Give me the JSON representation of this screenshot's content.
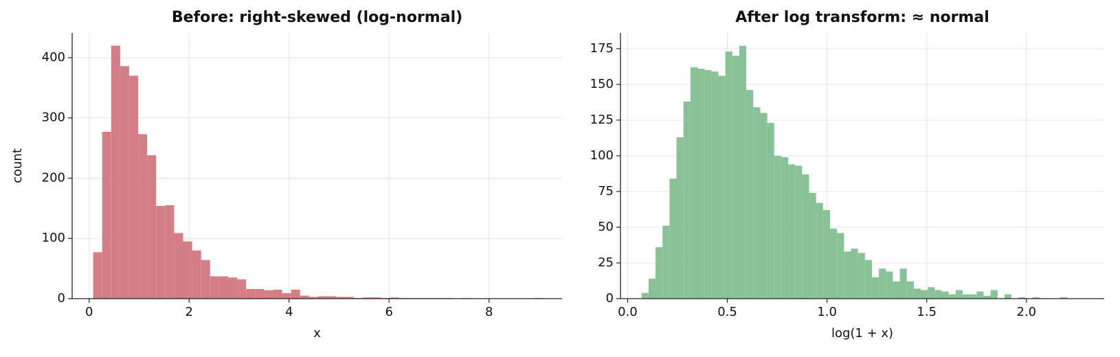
{
  "chart_data": [
    {
      "type": "histogram",
      "title": "Before: right-skewed (log-normal)",
      "xlabel": "x",
      "ylabel": "count",
      "color": "#d47f86",
      "grid": true,
      "bins": [
        0.08,
        0.26,
        0.44,
        0.62,
        0.8,
        0.98,
        1.16,
        1.34,
        1.52,
        1.7,
        1.88,
        2.06,
        2.24,
        2.42,
        2.6,
        2.78,
        2.96,
        3.14,
        3.32,
        3.5,
        3.68,
        3.86,
        4.04,
        4.22,
        4.4,
        4.58,
        4.76,
        4.94,
        5.12,
        5.3,
        5.48,
        5.66,
        5.84,
        6.02,
        6.2,
        6.38,
        6.56,
        6.74,
        6.92,
        7.1,
        7.28,
        7.46,
        7.64,
        7.82,
        8,
        8.18,
        8.36,
        8.54,
        8.72,
        8.9,
        9.08
      ],
      "counts": [
        77,
        277,
        420,
        386,
        370,
        273,
        238,
        154,
        155,
        109,
        95,
        80,
        64,
        37,
        37,
        35,
        32,
        16,
        16,
        14,
        15,
        9,
        15,
        5,
        3,
        4,
        4,
        3,
        3,
        1,
        2,
        2,
        1,
        2,
        1,
        1,
        1,
        1,
        1,
        1,
        0,
        1,
        0,
        0,
        0,
        0,
        0,
        0,
        0,
        1
      ],
      "xlim": [
        -0.34,
        9.46
      ],
      "xticks": [
        0,
        2,
        4,
        6,
        8
      ],
      "ylim": [
        0,
        441
      ],
      "yticks": [
        0,
        100,
        200,
        300,
        400
      ]
    },
    {
      "type": "histogram",
      "title": "After log transform: ≈ normal",
      "xlabel": "log(1 + x)",
      "color": "#88c296",
      "grid": true,
      "bins": [
        0.07,
        0.105,
        0.14,
        0.175,
        0.21,
        0.245,
        0.28,
        0.315,
        0.35,
        0.385,
        0.42,
        0.455,
        0.49,
        0.525,
        0.56,
        0.595,
        0.63,
        0.665,
        0.7,
        0.735,
        0.77,
        0.805,
        0.84,
        0.875,
        0.91,
        0.945,
        0.98,
        1.015,
        1.05,
        1.085,
        1.12,
        1.155,
        1.19,
        1.225,
        1.26,
        1.295,
        1.33,
        1.365,
        1.4,
        1.435,
        1.47,
        1.505,
        1.54,
        1.575,
        1.61,
        1.645,
        1.68,
        1.715,
        1.75,
        1.785,
        1.82,
        1.855,
        1.89,
        1.925,
        1.96,
        1.995,
        2.03,
        2.065,
        2.1,
        2.135,
        2.17,
        2.205,
        2.24,
        2.275,
        2.31
      ],
      "counts": [
        4,
        14,
        36,
        51,
        84,
        113,
        138,
        162,
        161,
        160,
        159,
        156,
        173,
        170,
        177,
        146,
        134,
        130,
        123,
        100,
        99,
        94,
        93,
        87,
        74,
        67,
        62,
        49,
        46,
        33,
        35,
        32,
        27,
        15,
        21,
        19,
        12,
        21,
        12,
        7,
        6,
        8,
        6,
        5,
        3,
        6,
        3,
        3,
        5,
        2,
        6,
        0,
        3,
        0,
        1,
        0,
        1,
        0,
        0,
        0,
        1,
        0,
        0,
        0
      ],
      "xlim": [
        -0.036,
        2.39
      ],
      "xticks": [
        {
          "value": 0,
          "label": "0.0"
        },
        0.5,
        {
          "value": 1,
          "label": "1.0"
        },
        1.5,
        {
          "value": 2,
          "label": "2.0"
        }
      ],
      "ylim": [
        0,
        186
      ],
      "yticks": [
        0,
        25,
        50,
        75,
        100,
        125,
        150,
        175
      ]
    }
  ]
}
